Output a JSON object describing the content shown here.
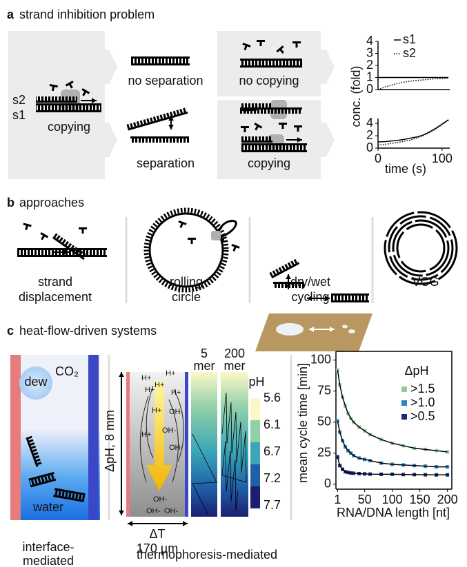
{
  "panel_a": {
    "label": "a",
    "title": "strand inhibition problem",
    "s2": "s2",
    "s1": "s1",
    "copying_left": "copying",
    "no_separation": "no separation",
    "separation": "separation",
    "no_copying": "no copying",
    "copying_right": "copying"
  },
  "panel_b": {
    "label": "b",
    "title": "approaches",
    "items": [
      [
        "strand",
        "displacement"
      ],
      [
        "rolling",
        "circle"
      ],
      [
        "dry/wet",
        "cycling"
      ],
      [
        "VCG"
      ]
    ]
  },
  "panel_c": {
    "label": "c",
    "title": "heat-flow-driven systems",
    "co2": "CO₂",
    "dew": "dew",
    "water": "water",
    "caption_left": [
      "interface-",
      "mediated"
    ],
    "gradient_label": "ΔpH, 8 mm",
    "dt": "ΔT",
    "width": "170 µm",
    "strip_1": [
      "5",
      "mer"
    ],
    "strip_2": [
      "200",
      "mer"
    ],
    "h_plus": "H+",
    "oh_minus": "OH-",
    "ph_title": "pH",
    "ph_ticks": [
      "5.6",
      "6.1",
      "6.7",
      "7.2",
      "7.7"
    ],
    "caption_middle": "thermophoresis-mediated"
  },
  "chart_data": [
    {
      "type": "line",
      "ylabel": "conc. (fold)",
      "x": [
        0,
        10,
        20,
        30,
        40,
        50,
        60,
        70,
        80,
        90,
        100,
        110
      ],
      "xlim": [
        0,
        112
      ],
      "ylim": [
        0,
        4
      ],
      "yticks": [
        0,
        1,
        2,
        3,
        4
      ],
      "series": [
        {
          "name": "s1",
          "color": "#000000",
          "dash": "solid",
          "values": [
            1,
            1,
            1,
            1,
            1,
            1,
            1,
            1,
            1,
            1,
            1,
            1
          ]
        },
        {
          "name": "s2",
          "color": "#000000",
          "dash": "dotted",
          "values": [
            0,
            0.2,
            0.35,
            0.5,
            0.6,
            0.7,
            0.75,
            0.8,
            0.85,
            0.9,
            0.93,
            0.95
          ]
        }
      ]
    },
    {
      "type": "line",
      "xlabel": "time (s)",
      "x": [
        0,
        10,
        20,
        30,
        40,
        50,
        60,
        70,
        80,
        90,
        100,
        110
      ],
      "xlim": [
        0,
        112
      ],
      "xticks": [
        0,
        100
      ],
      "ylim": [
        0,
        4.8
      ],
      "yticks": [
        0,
        2,
        4
      ],
      "series": [
        {
          "name": "s1",
          "color": "#000000",
          "dash": "solid",
          "values": [
            1,
            1.05,
            1.15,
            1.25,
            1.4,
            1.6,
            1.8,
            2.1,
            2.6,
            3.2,
            3.9,
            4.6
          ]
        },
        {
          "name": "s2",
          "color": "#000000",
          "dash": "dotted",
          "values": [
            0.5,
            0.6,
            0.75,
            0.9,
            1.1,
            1.3,
            1.6,
            2.0,
            2.5,
            3.1,
            3.8,
            4.5
          ]
        }
      ]
    },
    {
      "type": "scatter",
      "ylabel": "mean cycle time [min]",
      "xlabel": "RNA/DNA length [nt]",
      "legend_title": "ΔpH",
      "fit_color": "#000000",
      "x": [
        1,
        5,
        10,
        15,
        20,
        25,
        30,
        40,
        50,
        60,
        80,
        100,
        120,
        140,
        160,
        180,
        200
      ],
      "xlim": [
        -2,
        208
      ],
      "xticks": [
        1,
        50,
        100,
        150,
        200
      ],
      "ylim": [
        -4,
        107
      ],
      "yticks": [
        0,
        25,
        50,
        75,
        100
      ],
      "series": [
        {
          "name": ">1.5",
          "color": "#8fcc9a",
          "values": [
            92,
            80,
            70,
            63,
            57,
            53,
            50,
            46,
            43,
            40,
            36,
            33,
            31,
            29,
            28,
            27,
            26
          ]
        },
        {
          "name": ">1.0",
          "color": "#2d86c2",
          "values": [
            51,
            42,
            35,
            30,
            27,
            25,
            23,
            21,
            20,
            19,
            17,
            16,
            15.5,
            15,
            14.5,
            14,
            14
          ]
        },
        {
          "name": ">0.5",
          "color": "#1e2a78",
          "values": [
            22,
            15,
            12,
            10,
            9.5,
            9,
            8.8,
            8.5,
            8.3,
            8.1,
            8,
            8,
            7.8,
            7.7,
            7.6,
            7.5,
            7.5
          ]
        }
      ]
    }
  ]
}
